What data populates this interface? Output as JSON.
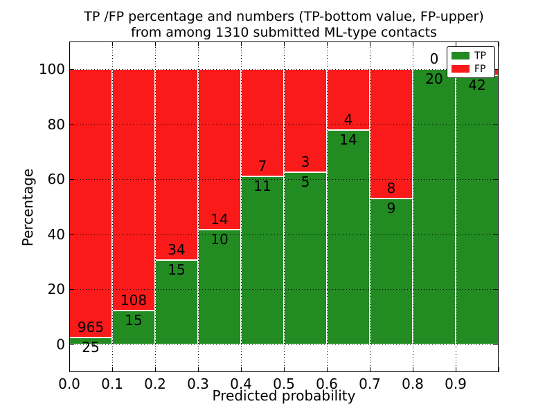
{
  "chart_data": {
    "type": "bar",
    "stacked": true,
    "values_shown_as": "percent-of-bin",
    "title_line1": "TP /FP percentage and numbers (TP-bottom value, FP-upper)",
    "title_line2": "from among 1310 submitted ML-type contacts",
    "xlabel": "Predicted probability",
    "ylabel": "Percentage",
    "total_contacts": 1310,
    "bin_width": 0.1,
    "categories": [
      "0.0",
      "0.1",
      "0.2",
      "0.3",
      "0.4",
      "0.5",
      "0.6",
      "0.7",
      "0.8",
      "0.9"
    ],
    "series": [
      {
        "name": "TP",
        "color": "#228b22",
        "values": [
          25,
          15,
          15,
          10,
          11,
          5,
          14,
          9,
          20,
          42
        ]
      },
      {
        "name": "FP",
        "color": "#fa1a1a",
        "values": [
          965,
          108,
          34,
          14,
          7,
          3,
          4,
          8,
          0,
          1
        ]
      }
    ],
    "xtick_labels": [
      "0.0",
      "0.1",
      "0.2",
      "0.3",
      "0.4",
      "0.5",
      "0.6",
      "0.7",
      "0.8",
      "0.9"
    ],
    "yticks": [
      0,
      20,
      40,
      60,
      80,
      100
    ],
    "xlim": [
      0.0,
      1.0
    ],
    "ylim": [
      -10,
      110
    ],
    "grid": "dotted-black-on",
    "legend": {
      "position": "upper right",
      "entries": [
        "TP",
        "FP"
      ]
    },
    "bar_edge_color": "#ffffff",
    "note_label_rule": "FP count printed above each stack boundary, TP count below it"
  }
}
